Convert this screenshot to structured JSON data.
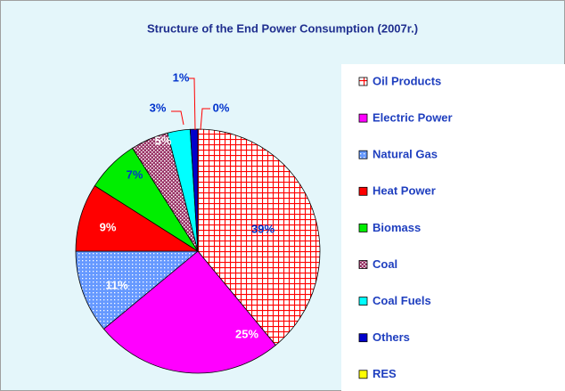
{
  "chart_data": {
    "type": "pie",
    "title": "Structure of the End Power Consumption (2007r.)",
    "categories": [
      "Oil Products",
      "Electric Power",
      "Natural Gas",
      "Heat Power",
      "Biomass",
      "Coal",
      "Coal Fuels",
      "Others",
      "RES"
    ],
    "values": [
      39,
      25,
      11,
      9,
      7,
      5,
      3,
      1,
      0
    ],
    "value_labels": [
      "39%",
      "25%",
      "11%",
      "9%",
      "7%",
      "5%",
      "3%",
      "1%",
      "0%"
    ],
    "colors": [
      "#ff0000",
      "#ff00ff",
      "#6699ff",
      "#ff0000",
      "#00ee00",
      "#993366",
      "#00ffff",
      "#0000cc",
      "#ffff00"
    ],
    "patterns": [
      "grid",
      "solid",
      "dots",
      "solid",
      "solid",
      "dots",
      "solid",
      "solid",
      "solid"
    ],
    "label_colors": [
      "#0033cc",
      "#ffffff",
      "#ffffff",
      "#ffffff",
      "#0033cc",
      "#ffffff",
      "#0033cc",
      "#0033cc",
      "#0033cc"
    ],
    "legend": "right"
  }
}
